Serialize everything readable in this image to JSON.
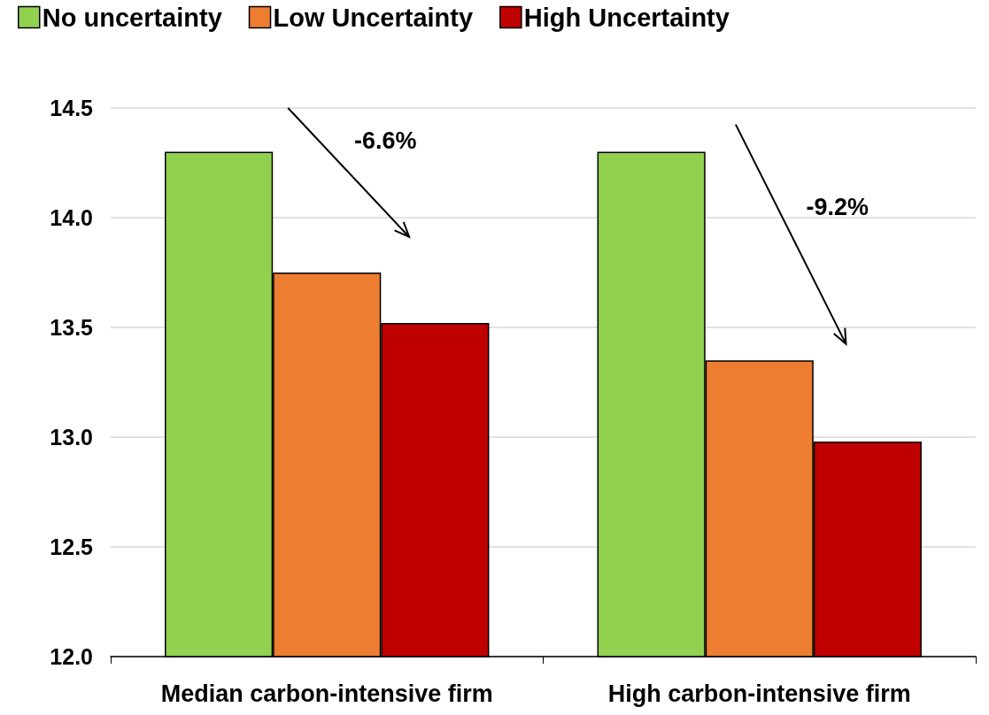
{
  "chart_data": {
    "type": "bar",
    "categories": [
      "Median carbon-intensive firm",
      "High carbon-intensive firm"
    ],
    "series": [
      {
        "name": "No uncertainty",
        "color": "#92d050",
        "values": [
          14.3,
          14.3
        ]
      },
      {
        "name": "Low Uncertainty",
        "color": "#ed7d31",
        "values": [
          13.75,
          13.35
        ]
      },
      {
        "name": "High Uncertainty",
        "color": "#c00000",
        "values": [
          13.52,
          12.98
        ]
      }
    ],
    "ylim": [
      12.0,
      14.5
    ],
    "yticks": [
      {
        "value": 12.0,
        "label": "12.0"
      },
      {
        "value": 12.5,
        "label": "12.5"
      },
      {
        "value": 13.0,
        "label": "13.0"
      },
      {
        "value": 13.5,
        "label": "13.5"
      },
      {
        "value": 14.0,
        "label": "14.0"
      },
      {
        "value": 14.5,
        "label": "14.5"
      }
    ],
    "grid": "y",
    "legend": "top left",
    "annotations": [
      "-6.6%",
      "-9.2%"
    ]
  }
}
